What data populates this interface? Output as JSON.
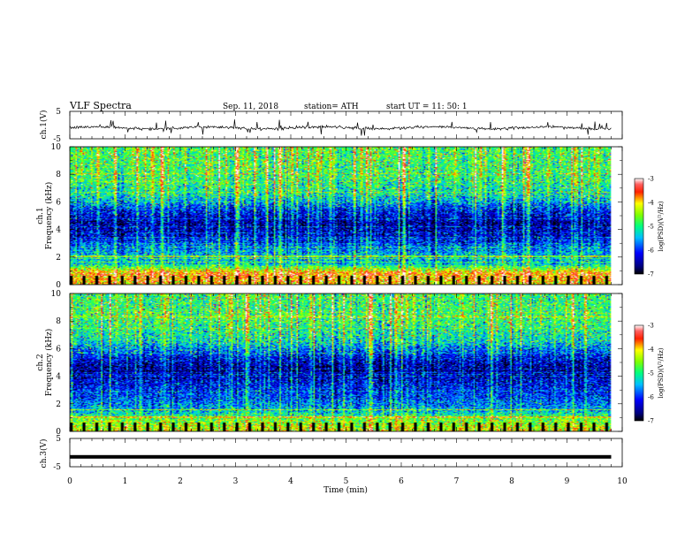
{
  "header": {
    "title": "VLF  Spectra",
    "date": "Sep. 11, 2018",
    "station": "station= ATH",
    "start": "start  UT  =    11: 50: 1"
  },
  "chart_data": [
    {
      "type": "line",
      "name": "ch1-voltage",
      "ylabel": "ch.1(V)",
      "ylim": [
        -5,
        5
      ],
      "yticks": [
        "5",
        "-5"
      ],
      "xlim": [
        0,
        10
      ],
      "note_shape": "noisy trace centered near -1 V with spikes up to ~+2 V",
      "baseline": -1.0,
      "data_end_min": 9.8
    },
    {
      "type": "heatmap",
      "name": "ch1-spectrogram",
      "ylabel": "ch.1\nFrequency (kHz)",
      "ylim": [
        0,
        10
      ],
      "yticks": [
        "0",
        "2",
        "4",
        "6",
        "8",
        "10"
      ],
      "xlim": [
        0,
        10
      ],
      "data_end_min": 9.8,
      "colorbar": {
        "label": "log(PSD)(V²/Hz)",
        "range": [
          -7,
          -3
        ],
        "ticks": [
          "-3",
          "-4",
          "-5",
          "-6",
          "-7"
        ]
      },
      "profile_khz": [
        [
          0,
          -4.0
        ],
        [
          0.8,
          -3.7
        ],
        [
          1.5,
          -5.4
        ],
        [
          2.5,
          -5.6
        ],
        [
          3.5,
          -6.3
        ],
        [
          4.5,
          -6.5
        ],
        [
          5.5,
          -6.0
        ],
        [
          6.5,
          -5.2
        ],
        [
          8.0,
          -4.9
        ],
        [
          10,
          -4.8
        ]
      ]
    },
    {
      "type": "heatmap",
      "name": "ch2-spectrogram",
      "ylabel": "ch.2\nFrequency (kHz)",
      "ylim": [
        0,
        10
      ],
      "yticks": [
        "0",
        "2",
        "4",
        "6",
        "8",
        "10"
      ],
      "xlim": [
        0,
        10
      ],
      "data_end_min": 9.8,
      "colorbar": {
        "label": "log(PSD)(V²/Hz)",
        "range": [
          -7,
          -3
        ],
        "ticks": [
          "-3",
          "-4",
          "-5",
          "-6",
          "-7"
        ]
      },
      "profile_khz": [
        [
          0,
          -4.2
        ],
        [
          0.8,
          -4.6
        ],
        [
          1.5,
          -5.5
        ],
        [
          2.5,
          -5.9
        ],
        [
          3.5,
          -6.2
        ],
        [
          4.5,
          -6.6
        ],
        [
          5.5,
          -6.1
        ],
        [
          6.5,
          -5.3
        ],
        [
          8.0,
          -4.9
        ],
        [
          10,
          -4.9
        ]
      ]
    },
    {
      "type": "line",
      "name": "ch3-voltage",
      "ylabel": "ch.3(V)",
      "ylim": [
        -5,
        5
      ],
      "yticks": [
        "5",
        "-5"
      ],
      "xlim": [
        0,
        10
      ],
      "baseline": -1.5,
      "data_end_min": 9.8,
      "xlabel": "Time  (min)",
      "xticks": [
        "0",
        "1",
        "2",
        "3",
        "4",
        "5",
        "6",
        "7",
        "8",
        "9",
        "10"
      ]
    }
  ]
}
